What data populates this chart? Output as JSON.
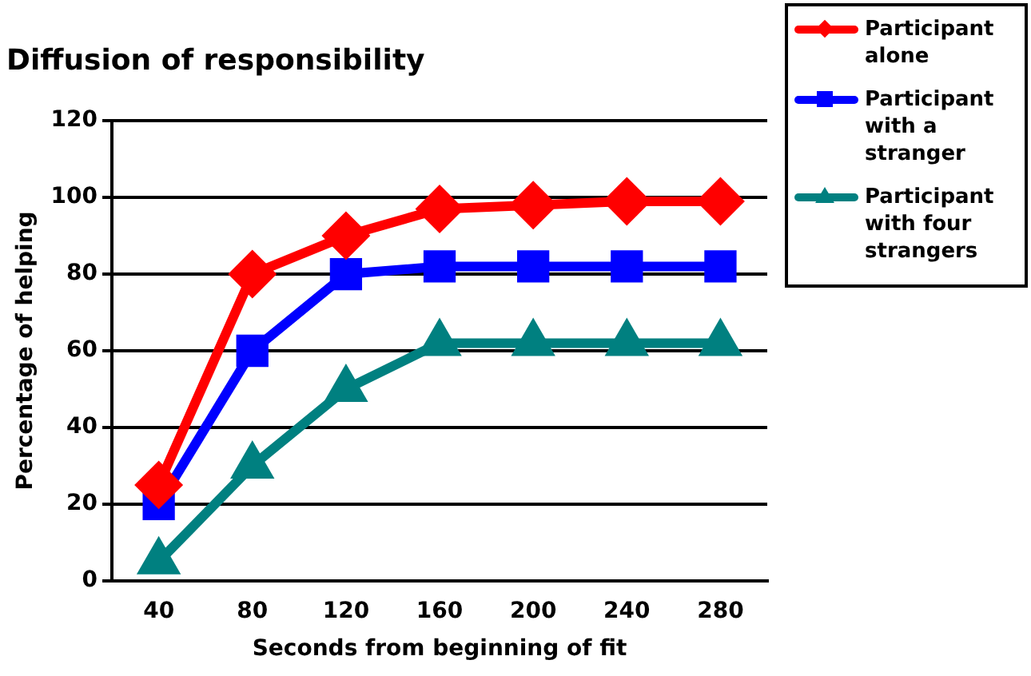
{
  "chart_data": {
    "type": "line",
    "title": "Diffusion of responsibility",
    "xlabel": "Seconds from beginning of fit",
    "ylabel": "Percentage of helping",
    "categories": [
      "40",
      "80",
      "120",
      "160",
      "200",
      "240",
      "280"
    ],
    "series": [
      {
        "name": "Participant alone",
        "color": "#ff0000",
        "marker": "diamond",
        "values": [
          25,
          80,
          90,
          97,
          98,
          99,
          99
        ]
      },
      {
        "name": "Participant with a stranger",
        "color": "#0000ff",
        "marker": "square",
        "values": [
          20,
          60,
          80,
          82,
          82,
          82,
          82
        ]
      },
      {
        "name": "Participant with four strangers",
        "color": "#008080",
        "marker": "triangle",
        "values": [
          5,
          30,
          50,
          62,
          62,
          62,
          62
        ]
      }
    ],
    "ylim": [
      0,
      120
    ],
    "yticks": [
      0,
      20,
      40,
      60,
      80,
      100,
      120
    ],
    "grid": "y",
    "legend": "top right",
    "line_style": "solid"
  }
}
